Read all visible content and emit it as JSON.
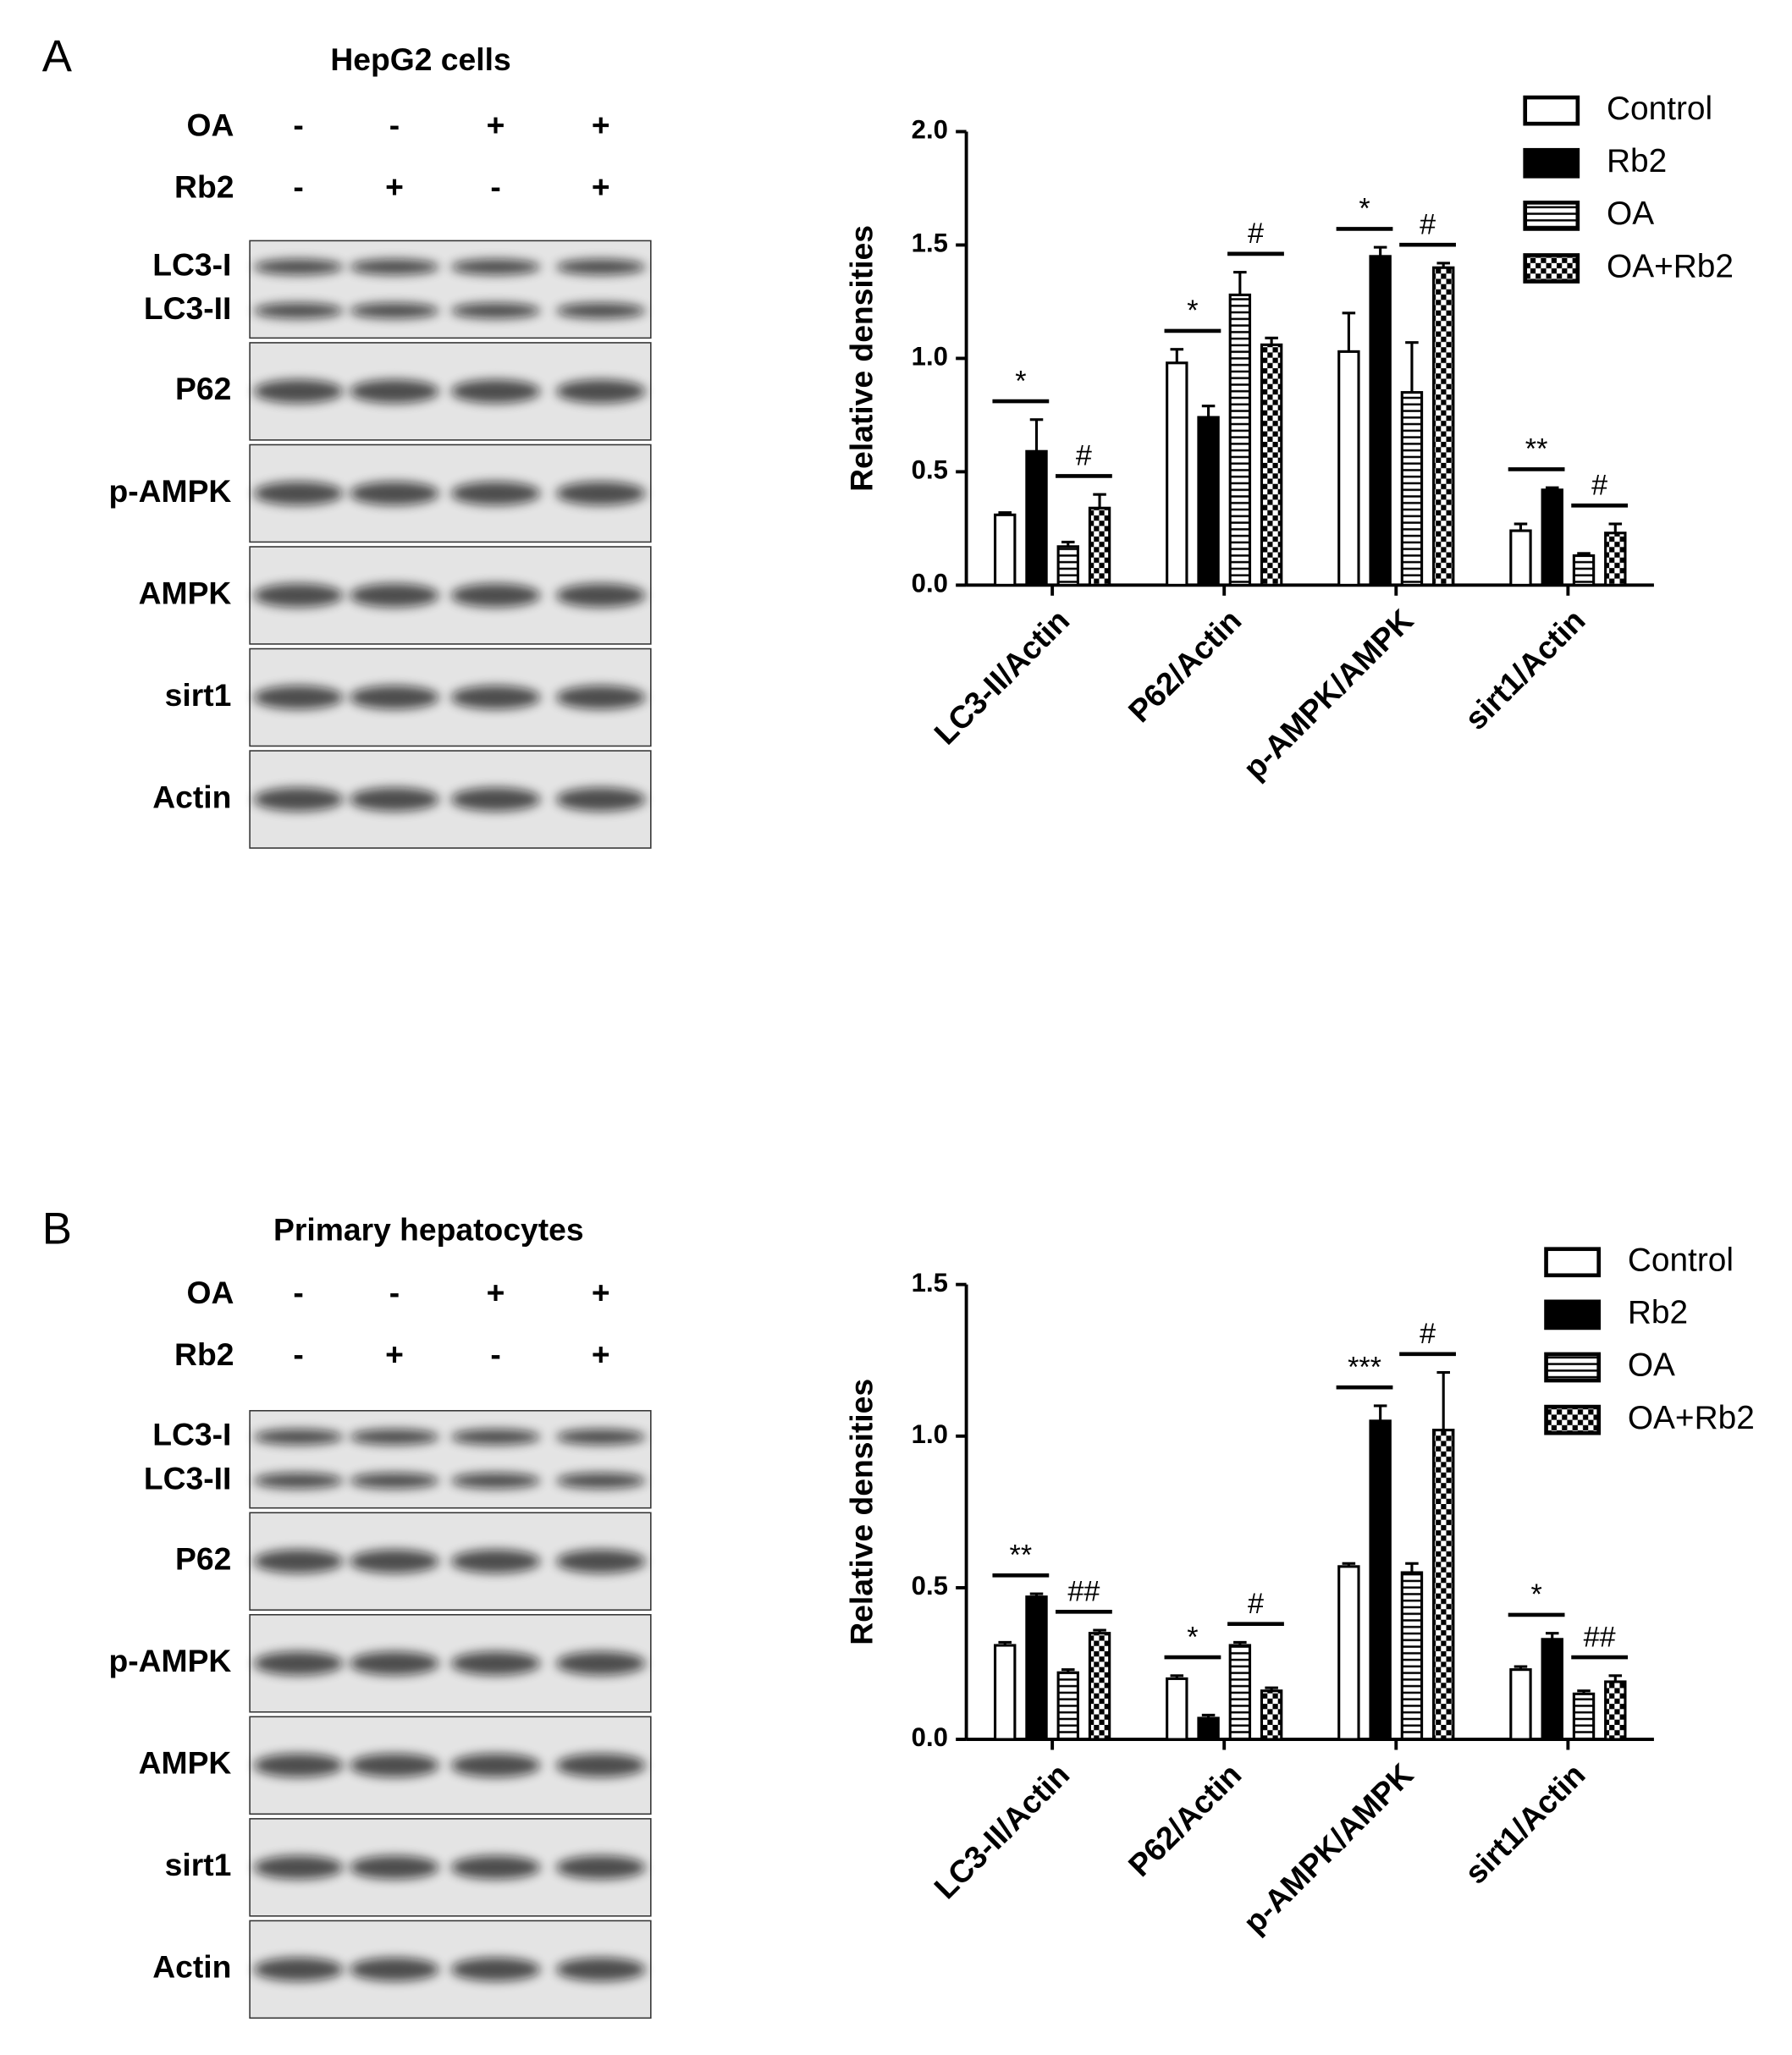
{
  "panels": [
    {
      "letter": "A",
      "blot": {
        "title": "HepG2 cells",
        "treatments": [
          {
            "name": "OA",
            "signs": [
              "-",
              "-",
              "+",
              "+"
            ]
          },
          {
            "name": "Rb2",
            "signs": [
              "-",
              "+",
              "-",
              "+"
            ]
          }
        ],
        "rows": [
          [
            "LC3-I",
            "LC3-II"
          ],
          [
            "P62"
          ],
          [
            "p-AMPK"
          ],
          [
            "AMPK"
          ],
          [
            "sirt1"
          ],
          [
            "Actin"
          ]
        ]
      }
    },
    {
      "letter": "B",
      "blot": {
        "title": "Primary hepatocytes",
        "treatments": [
          {
            "name": "OA",
            "signs": [
              "-",
              "-",
              "+",
              "+"
            ]
          },
          {
            "name": "Rb2",
            "signs": [
              "-",
              "+",
              "-",
              "+"
            ]
          }
        ],
        "rows": [
          [
            "LC3-I",
            "LC3-II"
          ],
          [
            "P62"
          ],
          [
            "p-AMPK"
          ],
          [
            "AMPK"
          ],
          [
            "sirt1"
          ],
          [
            "Actin"
          ]
        ]
      }
    }
  ],
  "chart_data": [
    {
      "type": "bar",
      "ylabel": "Relative densities",
      "categories": [
        "LC3-II/Actin",
        "P62/Actin",
        "p-AMPK/AMPK",
        "sirt1/Actin"
      ],
      "series": [
        {
          "name": "Control",
          "color": "#000000",
          "pattern": "none",
          "values": [
            0.31,
            0.98,
            1.03,
            0.24
          ],
          "errors": [
            0.01,
            0.06,
            0.17,
            0.03
          ]
        },
        {
          "name": "Rb2",
          "color": "#000000",
          "pattern": "solid",
          "values": [
            0.59,
            0.74,
            1.45,
            0.42
          ],
          "errors": [
            0.14,
            0.05,
            0.04,
            0.01
          ]
        },
        {
          "name": "OA",
          "color": "#000000",
          "pattern": "hlines",
          "values": [
            0.17,
            1.28,
            0.85,
            0.13
          ],
          "errors": [
            0.02,
            0.1,
            0.22,
            0.01
          ]
        },
        {
          "name": "OA+Rb2",
          "color": "#000000",
          "pattern": "checker",
          "values": [
            0.34,
            1.06,
            1.4,
            0.23
          ],
          "errors": [
            0.06,
            0.03,
            0.02,
            0.04
          ]
        }
      ],
      "significance": [
        [
          "*",
          "#"
        ],
        [
          "*",
          "#"
        ],
        [
          "*",
          "#"
        ],
        [
          "**",
          "#"
        ]
      ],
      "ylim": [
        0,
        2
      ],
      "yticks": [
        {
          "value": 0,
          "label": "0.0"
        },
        {
          "value": 0.5,
          "label": "0.5"
        },
        {
          "value": 1,
          "label": "1.0"
        },
        {
          "value": 1.5,
          "label": "1.5"
        },
        {
          "value": 2,
          "label": "2.0"
        }
      ],
      "legend": "upper right"
    },
    {
      "type": "bar",
      "ylabel": "Relative densities",
      "categories": [
        "LC3-II/Actin",
        "P62/Actin",
        "p-AMPK/AMPK",
        "sirt1/Actin"
      ],
      "series": [
        {
          "name": "Control",
          "color": "#000000",
          "pattern": "none",
          "values": [
            0.31,
            0.2,
            0.57,
            0.23
          ],
          "errors": [
            0.01,
            0.01,
            0.01,
            0.01
          ]
        },
        {
          "name": "Rb2",
          "color": "#000000",
          "pattern": "solid",
          "values": [
            0.47,
            0.07,
            1.05,
            0.33
          ],
          "errors": [
            0.01,
            0.01,
            0.05,
            0.02
          ]
        },
        {
          "name": "OA",
          "color": "#000000",
          "pattern": "hlines",
          "values": [
            0.22,
            0.31,
            0.55,
            0.15
          ],
          "errors": [
            0.01,
            0.01,
            0.03,
            0.01
          ]
        },
        {
          "name": "OA+Rb2",
          "color": "#000000",
          "pattern": "checker",
          "values": [
            0.35,
            0.16,
            1.02,
            0.19
          ],
          "errors": [
            0.01,
            0.01,
            0.19,
            0.02
          ]
        }
      ],
      "significance": [
        [
          "**",
          "##"
        ],
        [
          "*",
          "#"
        ],
        [
          "***",
          "#"
        ],
        [
          "*",
          "##"
        ]
      ],
      "ylim": [
        0,
        1.5
      ],
      "yticks": [
        {
          "value": 0,
          "label": "0.0"
        },
        {
          "value": 0.5,
          "label": "0.5"
        },
        {
          "value": 1,
          "label": "1.0"
        },
        {
          "value": 1.5,
          "label": "1.5"
        }
      ],
      "legend": "upper right"
    }
  ]
}
